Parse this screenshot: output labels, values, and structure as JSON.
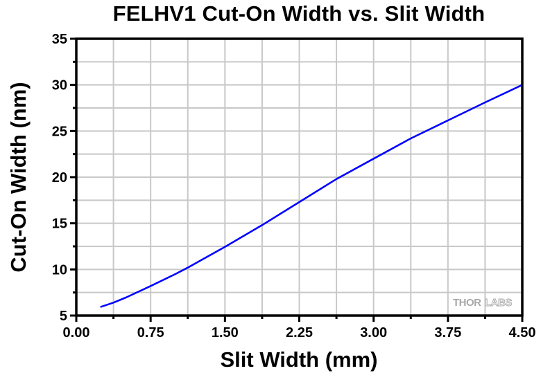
{
  "title": "FELHV1 Cut-On Width vs. Slit Width",
  "watermark": {
    "bold": "THOR",
    "outline": "LABS"
  },
  "colors": {
    "line": "#0000ff",
    "grid": "#c8c8c8",
    "axis": "#000000",
    "logo": "#a8a8a8"
  },
  "chart_data": {
    "type": "line",
    "title": "FELHV1 Cut-On Width vs. Slit Width",
    "xlabel": "Slit Width (mm)",
    "ylabel": "Cut-On Width (nm)",
    "xlim": [
      0,
      4.5
    ],
    "ylim": [
      5,
      35
    ],
    "xticks": [
      "0.00",
      "0.75",
      "1.50",
      "2.25",
      "3.00",
      "3.75",
      "4.50"
    ],
    "yticks": [
      "5",
      "10",
      "15",
      "20",
      "25",
      "30",
      "35"
    ],
    "grid": true,
    "legend": null,
    "series": [
      {
        "name": "FELHV1",
        "x": [
          0.25,
          0.375,
          0.5,
          0.75,
          1.0,
          1.125,
          1.5,
          1.875,
          2.25,
          2.625,
          3.0,
          3.375,
          3.75,
          4.125,
          4.5
        ],
        "y": [
          5.95,
          6.4,
          6.95,
          8.2,
          9.5,
          10.2,
          12.45,
          14.8,
          17.3,
          19.8,
          22.0,
          24.2,
          26.15,
          28.1,
          30.0
        ]
      }
    ]
  }
}
